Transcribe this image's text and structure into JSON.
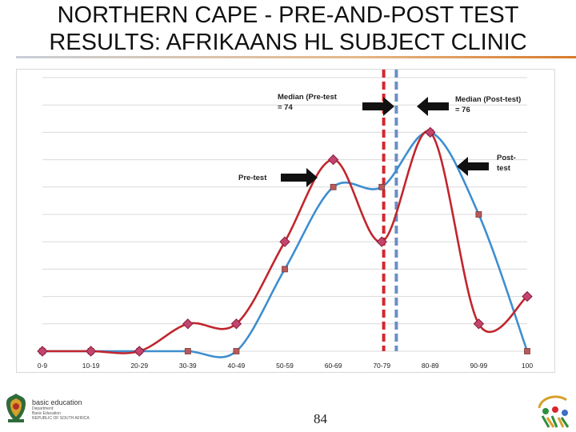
{
  "header": {
    "title_line1": "NORTHERN CAPE - PRE-AND-POST TEST",
    "title_line2": "RESULTS: AFRIKAANS HL SUBJECT CLINIC"
  },
  "footer": {
    "page_number": "84",
    "brand_name": "basic education",
    "brand_line1": "Department:",
    "brand_line2": "Basic Education",
    "brand_line3": "REPUBLIC OF SOUTH AFRICA"
  },
  "colors": {
    "pre_test": "#c0262d",
    "post_test": "#3e8ed0",
    "pre_marker": "#c2456e",
    "post_marker": "#b85a5a",
    "median_pre_line": "#d8262d",
    "median_post_line": "#6b8fc4"
  },
  "chart_data": {
    "type": "line",
    "categories": [
      "0-9",
      "10-19",
      "20-29",
      "30-39",
      "40-49",
      "50-59",
      "60-69",
      "70-79",
      "80-89",
      "90-99",
      "100"
    ],
    "ylim": [
      0,
      10
    ],
    "yticks": [
      "0",
      "1",
      "2",
      "3",
      "4",
      "5",
      "6",
      "7",
      "8",
      "9",
      "10"
    ],
    "grid": true,
    "series": [
      {
        "key": "pre",
        "values": [
          0,
          0,
          0,
          1,
          1,
          4,
          7,
          4,
          8,
          1,
          2
        ]
      },
      {
        "key": "post",
        "values": [
          0,
          0,
          0,
          0,
          0,
          3,
          6,
          6,
          8,
          5,
          0
        ]
      }
    ],
    "median_lines": [
      {
        "key": "pre",
        "value": 74
      },
      {
        "key": "post",
        "value": 76
      }
    ],
    "annotations": {
      "median_pre_line1": "Median (Pre-test",
      "median_pre_line2": "= 74",
      "median_post_line1": "Median (Post-test)",
      "median_post_line2": "= 76",
      "pre_test_label": "Pre-test",
      "post_test_line1": "Post-",
      "post_test_line2": "test"
    }
  }
}
